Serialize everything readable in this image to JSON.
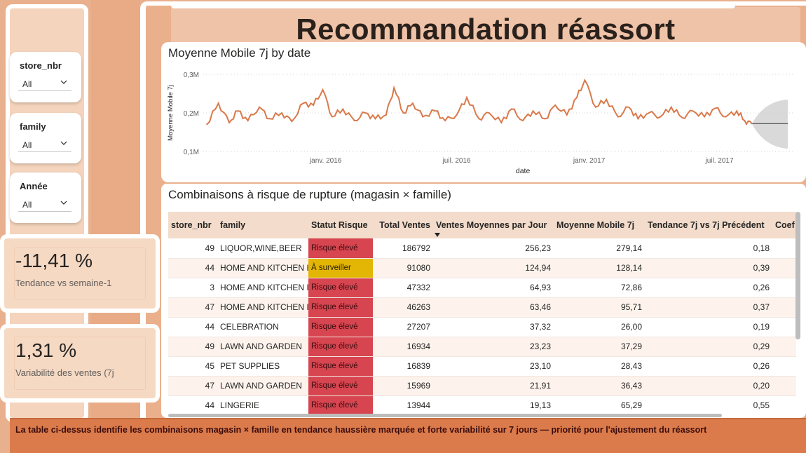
{
  "page": {
    "title": "Recommandation réassort"
  },
  "colors": {
    "background": "#e9b08d",
    "line": "#d9794a",
    "risk_high": "#d64550",
    "risk_watch": "#e3b505",
    "footer": "#db7b4b"
  },
  "slicers": [
    {
      "label": "store_nbr",
      "value": "All",
      "icon": "chevron-down-icon"
    },
    {
      "label": "family",
      "value": "All",
      "icon": "chevron-down-icon"
    },
    {
      "label": "Année",
      "value": "All",
      "icon": "chevron-down-icon"
    }
  ],
  "kpis": [
    {
      "value": "-11,41 %",
      "label": "Tendance vs semaine-1"
    },
    {
      "value": "1,31 %",
      "label": "Variabilité des ventes (7j"
    }
  ],
  "line_chart": {
    "title": "Moyenne Mobile 7j by date"
  },
  "chart_data": {
    "type": "line",
    "title": "Moyenne Mobile 7j by date",
    "xlabel": "date",
    "ylabel": "Moyenne Mobile 7j",
    "y_ticks": [
      "0,3M",
      "0,2M",
      "0,1M"
    ],
    "ylim": [
      100000,
      300000
    ],
    "x_ticks": [
      "janv. 2016",
      "juil. 2016",
      "janv. 2017",
      "juil. 2017"
    ],
    "xlim": [
      "2015-07-15",
      "2017-09-30"
    ],
    "grid": true,
    "forecast_band": true,
    "series": [
      {
        "color": "#d9794a",
        "x": [
          "2015-07-20",
          "2015-08-05",
          "2015-08-20",
          "2015-09-01",
          "2015-09-15",
          "2015-10-01",
          "2015-10-15",
          "2015-11-01",
          "2015-11-15",
          "2015-12-01",
          "2015-12-15",
          "2015-12-28",
          "2016-01-10",
          "2016-01-25",
          "2016-02-10",
          "2016-02-25",
          "2016-03-10",
          "2016-03-25",
          "2016-04-05",
          "2016-04-18",
          "2016-05-01",
          "2016-05-15",
          "2016-06-01",
          "2016-06-15",
          "2016-07-01",
          "2016-07-15",
          "2016-08-01",
          "2016-08-15",
          "2016-09-01",
          "2016-09-15",
          "2016-10-01",
          "2016-10-15",
          "2016-11-01",
          "2016-11-15",
          "2016-12-01",
          "2016-12-15",
          "2016-12-26",
          "2017-01-10",
          "2017-01-25",
          "2017-02-10",
          "2017-02-25",
          "2017-03-10",
          "2017-03-25",
          "2017-04-10",
          "2017-04-25",
          "2017-05-10",
          "2017-05-25",
          "2017-06-10",
          "2017-06-25",
          "2017-07-10",
          "2017-07-25",
          "2017-08-05",
          "2017-08-15"
        ],
        "values": [
          170000,
          225000,
          175000,
          205000,
          180000,
          215000,
          185000,
          200000,
          178000,
          225000,
          220000,
          260000,
          190000,
          210000,
          180000,
          200000,
          185000,
          195000,
          265000,
          200000,
          225000,
          190000,
          205000,
          180000,
          195000,
          240000,
          185000,
          200000,
          175000,
          210000,
          180000,
          205000,
          185000,
          220000,
          195000,
          240000,
          285000,
          215000,
          235000,
          190000,
          215000,
          185000,
          200000,
          190000,
          215000,
          188000,
          205000,
          190000,
          212000,
          190000,
          205000,
          180000,
          172000
        ]
      }
    ]
  },
  "risk_table": {
    "title": "Combinaisons à risque de rupture (magasin × famille)",
    "columns": [
      "store_nbr",
      "family",
      "Statut Risque",
      "Total Ventes",
      "Ventes Moyennes par Jour",
      "Moyenne Mobile 7j",
      "Tendance 7j vs 7j Précédent",
      "Coef"
    ],
    "rows": [
      {
        "store_nbr": "49",
        "family": "LIQUOR,WINE,BEER",
        "status": "Risque élevé",
        "status_level": "high",
        "total": "186792",
        "avg_day": "256,23",
        "mm7": "279,14",
        "trend": "0,18"
      },
      {
        "store_nbr": "44",
        "family": "HOME AND KITCHEN I",
        "status": "À surveiller",
        "status_level": "watch",
        "total": "91080",
        "avg_day": "124,94",
        "mm7": "128,14",
        "trend": "0,39"
      },
      {
        "store_nbr": "3",
        "family": "HOME AND KITCHEN I",
        "status": "Risque élevé",
        "status_level": "high",
        "total": "47332",
        "avg_day": "64,93",
        "mm7": "72,86",
        "trend": "0,26"
      },
      {
        "store_nbr": "47",
        "family": "HOME AND KITCHEN I",
        "status": "Risque élevé",
        "status_level": "high",
        "total": "46263",
        "avg_day": "63,46",
        "mm7": "95,71",
        "trend": "0,37"
      },
      {
        "store_nbr": "44",
        "family": "CELEBRATION",
        "status": "Risque élevé",
        "status_level": "high",
        "total": "27207",
        "avg_day": "37,32",
        "mm7": "26,00",
        "trend": "0,19"
      },
      {
        "store_nbr": "49",
        "family": "LAWN AND GARDEN",
        "status": "Risque élevé",
        "status_level": "high",
        "total": "16934",
        "avg_day": "23,23",
        "mm7": "37,29",
        "trend": "0,29"
      },
      {
        "store_nbr": "45",
        "family": "PET SUPPLIES",
        "status": "Risque élevé",
        "status_level": "high",
        "total": "16839",
        "avg_day": "23,10",
        "mm7": "28,43",
        "trend": "0,26"
      },
      {
        "store_nbr": "47",
        "family": "LAWN AND GARDEN",
        "status": "Risque élevé",
        "status_level": "high",
        "total": "15969",
        "avg_day": "21,91",
        "mm7": "36,43",
        "trend": "0,20"
      },
      {
        "store_nbr": "44",
        "family": "LINGERIE",
        "status": "Risque élevé",
        "status_level": "high",
        "total": "13944",
        "avg_day": "19,13",
        "mm7": "65,29",
        "trend": "0,55"
      }
    ]
  },
  "footer": {
    "text": "La table ci-dessus identifie les combinaisons magasin × famille en tendance haussière marquée et forte variabilité sur 7 jours — priorité pour l'ajustement du réassort"
  }
}
